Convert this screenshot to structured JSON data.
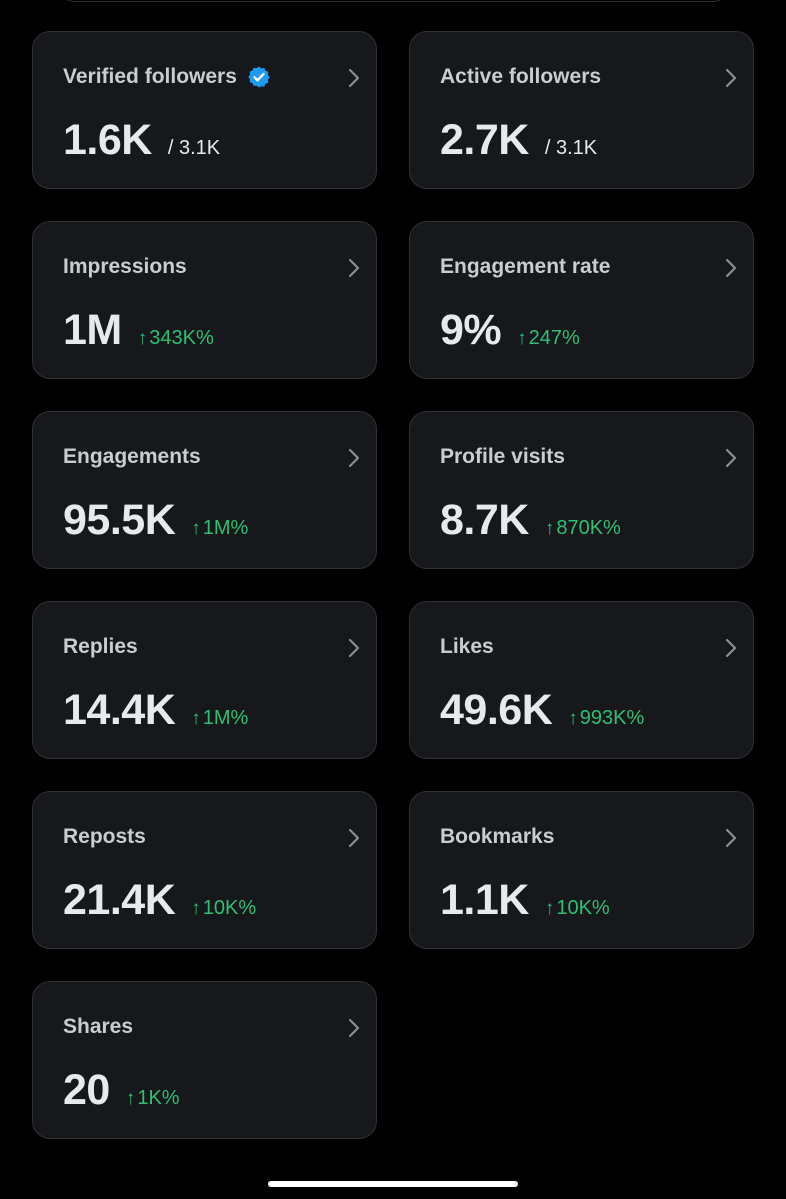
{
  "colors": {
    "background": "#000000",
    "card_background": "#16181c",
    "card_border": "#2f3136",
    "positive_change": "#2fbf71",
    "verified_badge": "#1d9bf0"
  },
  "cards": [
    {
      "title": "Verified followers",
      "value": "1.6K",
      "total": "/ 3.1K",
      "verified": true
    },
    {
      "title": "Active followers",
      "value": "2.7K",
      "total": "/ 3.1K"
    },
    {
      "title": "Impressions",
      "value": "1M",
      "change": "343K%"
    },
    {
      "title": "Engagement rate",
      "value": "9%",
      "change": "247%"
    },
    {
      "title": "Engagements",
      "value": "95.5K",
      "change": "1M%"
    },
    {
      "title": "Profile visits",
      "value": "8.7K",
      "change": "870K%"
    },
    {
      "title": "Replies",
      "value": "14.4K",
      "change": "1M%"
    },
    {
      "title": "Likes",
      "value": "49.6K",
      "change": "993K%"
    },
    {
      "title": "Reposts",
      "value": "21.4K",
      "change": "10K%"
    },
    {
      "title": "Bookmarks",
      "value": "1.1K",
      "change": "10K%"
    },
    {
      "title": "Shares",
      "value": "20",
      "change": "1K%"
    }
  ],
  "icons": {
    "chevron": "chevron-right-icon",
    "verified": "verified-badge-icon",
    "change_arrow": "↑"
  }
}
